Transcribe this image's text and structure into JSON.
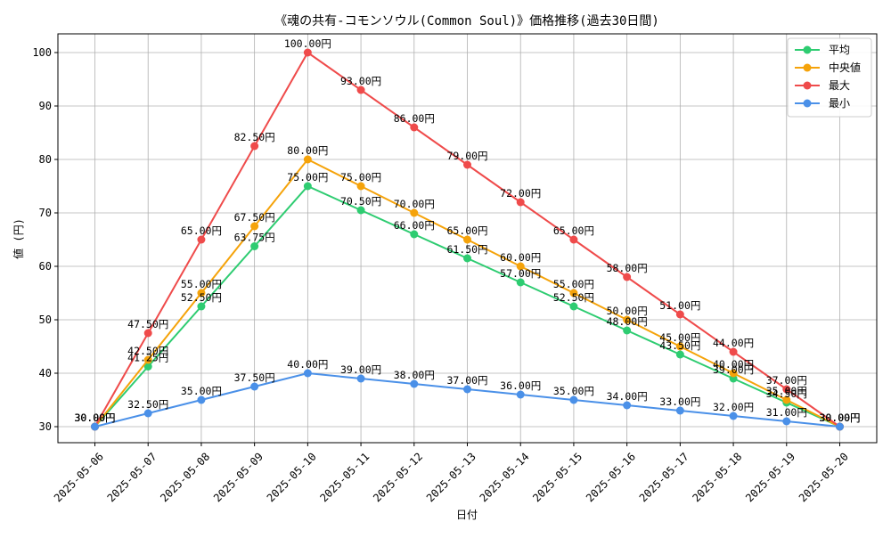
{
  "chart_data": {
    "type": "line",
    "title": "《魂の共有-コモンソウル(Common Soul)》価格推移(過去30日間)",
    "xlabel": "日付",
    "ylabel": "値 (円)",
    "ylim": [
      27,
      103.5
    ],
    "yticks": [
      30,
      40,
      50,
      60,
      70,
      80,
      90,
      100
    ],
    "grid": true,
    "legend_position": "top-right",
    "categories": [
      "2025-05-06",
      "2025-05-07",
      "2025-05-08",
      "2025-05-09",
      "2025-05-10",
      "2025-05-11",
      "2025-05-12",
      "2025-05-13",
      "2025-05-14",
      "2025-05-15",
      "2025-05-16",
      "2025-05-17",
      "2025-05-18",
      "2025-05-19",
      "2025-05-20"
    ],
    "series": [
      {
        "name": "平均",
        "color": "#2ecc71",
        "values": [
          30.0,
          41.25,
          52.5,
          63.75,
          75.0,
          70.5,
          66.0,
          61.5,
          57.0,
          52.5,
          48.0,
          43.5,
          39.0,
          34.5,
          30.0
        ],
        "labels": [
          "30.00円",
          "41.25円",
          "52.50円",
          "63.75円",
          "75.00円",
          "70.50円",
          "66.00円",
          "61.50円",
          "57.00円",
          "52.50円",
          "48.00円",
          "43.50円",
          "39.00円",
          "34.50円",
          "30.00円"
        ]
      },
      {
        "name": "中央値",
        "color": "#f5a30a",
        "values": [
          30.0,
          42.5,
          55.0,
          67.5,
          80.0,
          75.0,
          70.0,
          65.0,
          60.0,
          55.0,
          50.0,
          45.0,
          40.0,
          35.0,
          30.0
        ],
        "labels": [
          "30.00円",
          "42.50円",
          "55.00円",
          "67.50円",
          "80.00円",
          "75.00円",
          "70.00円",
          "65.00円",
          "60.00円",
          "55.00円",
          "50.00円",
          "45.00円",
          "40.00円",
          "35.00円",
          "30.00円"
        ]
      },
      {
        "name": "最大",
        "color": "#ef4b4b",
        "values": [
          30.0,
          47.5,
          65.0,
          82.5,
          100.0,
          93.0,
          86.0,
          79.0,
          72.0,
          65.0,
          58.0,
          51.0,
          44.0,
          37.0,
          30.0
        ],
        "labels": [
          "30.00円",
          "47.50円",
          "65.00円",
          "82.50円",
          "100.00円",
          "93.00円",
          "86.00円",
          "79.00円",
          "72.00円",
          "65.00円",
          "58.00円",
          "51.00円",
          "44.00円",
          "37.00円",
          "30.00円"
        ]
      },
      {
        "name": "最小",
        "color": "#4a90e8",
        "values": [
          30.0,
          32.5,
          35.0,
          37.5,
          40.0,
          39.0,
          38.0,
          37.0,
          36.0,
          35.0,
          34.0,
          33.0,
          32.0,
          31.0,
          30.0
        ],
        "labels": [
          "30.00円",
          "32.50円",
          "35.00円",
          "37.50円",
          "40.00円",
          "39.00円",
          "38.00円",
          "37.00円",
          "36.00円",
          "35.00円",
          "34.00円",
          "33.00円",
          "32.00円",
          "31.00円",
          "30.00円"
        ]
      }
    ]
  }
}
